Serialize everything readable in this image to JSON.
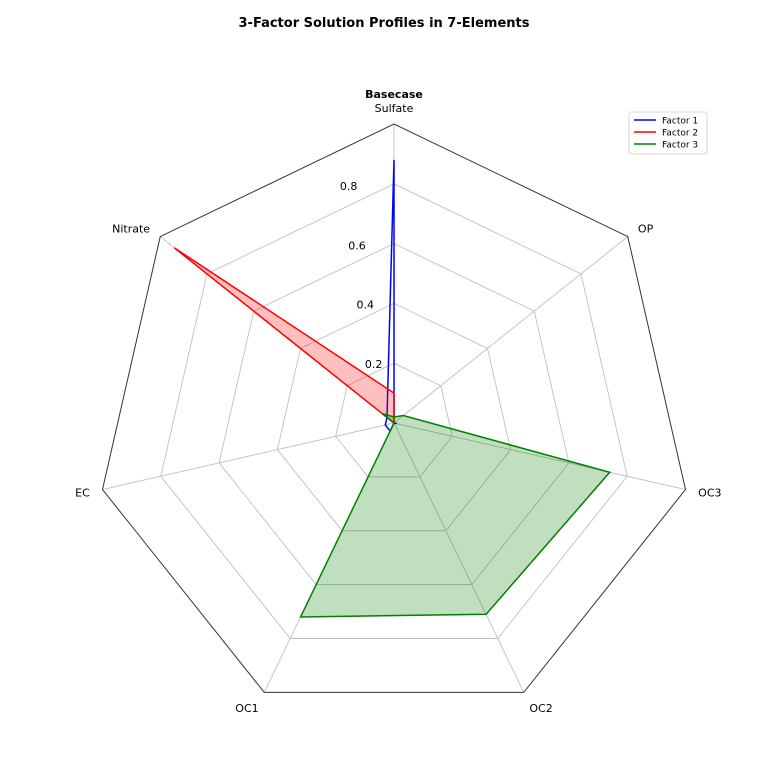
{
  "chart_data": {
    "type": "radar",
    "title": "3-Factor Solution Profiles in 7-Elements",
    "subtitle": "Basecase",
    "axes": [
      "Sulfate",
      "OP",
      "OC3",
      "OC2",
      "OC1",
      "EC",
      "Nitrate"
    ],
    "rlim": [
      0,
      1.0
    ],
    "rticks": [
      0.2,
      0.4,
      0.6,
      0.8
    ],
    "rtick_labels": [
      "0.2",
      "0.4",
      "0.6",
      "0.8"
    ],
    "grid": true,
    "legend_position": "top-right",
    "series": [
      {
        "name": "Factor 1",
        "color": "#0000ff",
        "fill": null,
        "values": [
          0.88,
          0.0,
          0.01,
          0.0,
          0.03,
          0.03,
          0.03
        ]
      },
      {
        "name": "Factor 2",
        "color": "#ff0000",
        "fill": "#ff0000",
        "values": [
          0.1,
          0.0,
          0.0,
          0.0,
          0.01,
          0.0,
          0.94
        ]
      },
      {
        "name": "Factor 3",
        "color": "#008000",
        "fill": "#008000",
        "values": [
          0.02,
          0.04,
          0.74,
          0.71,
          0.72,
          0.0,
          0.05
        ]
      }
    ]
  }
}
